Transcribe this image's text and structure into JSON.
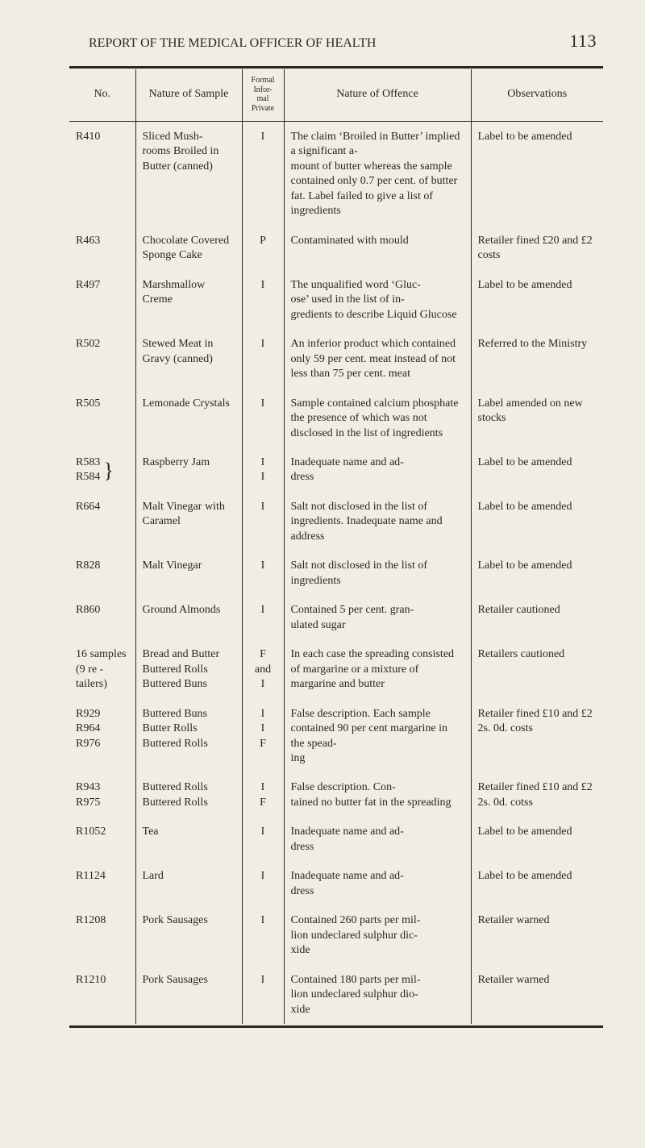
{
  "header": {
    "running_title": "REPORT OF THE MEDICAL OFFICER OF HEALTH",
    "page_number": "113"
  },
  "columns": {
    "no": "No.",
    "sample": "Nature of Sample",
    "fip_formal": "Formal",
    "fip_informal": "Infor-\nmal",
    "fip_private": "Private",
    "offence": "Nature of Offence",
    "obs": "Observations"
  },
  "rows": [
    {
      "no": "R410",
      "sample": "Sliced Mush-\nrooms Broiled in Butter (canned)",
      "fip": "I",
      "offence": "The claim ‘Broiled in Butter’ implied a significant a-\nmount of butter whereas the sample contained only 0.7 per cent. of butter fat. Label failed to give a list of ingredients",
      "obs": "Label to be amended"
    },
    {
      "no": "R463",
      "sample": "Chocolate Covered Sponge Cake",
      "fip": "P",
      "offence": "Contaminated with mould",
      "obs": "Retailer fined £20 and £2 costs"
    },
    {
      "no": "R497",
      "sample": "Marshmallow Creme",
      "fip": "I",
      "offence": "The unqualified word ‘Gluc-\nose’ used in the list of in-\ngredients to describe Liquid Glucose",
      "obs": "Label to be amended"
    },
    {
      "no": "R502",
      "sample": "Stewed Meat in Gravy (canned)",
      "fip": "I",
      "offence": "An inferior product which contained only 59 per cent. meat instead of not less than 75 per cent. meat",
      "obs": "Referred to the Ministry"
    },
    {
      "no": "R505",
      "sample": "Lemonade Crystals",
      "fip": "I",
      "offence": "Sample contained calcium phosphate the presence of which was not disclosed in the list of ingredients",
      "obs": "Label amended on new stocks"
    },
    {
      "no": "R583\nR584",
      "brace": true,
      "sample": "Raspberry Jam",
      "fip": "I\nI",
      "offence": "Inadequate name and ad-\ndress",
      "obs": "Label to be amended"
    },
    {
      "no": "R664",
      "sample": "Malt Vinegar with Caramel",
      "fip": "I",
      "offence": "Salt not disclosed in the list of ingredients. Inadequate name and address",
      "obs": "Label to be amended"
    },
    {
      "no": "R828",
      "sample": "Malt Vinegar",
      "fip": "I",
      "offence": "Salt not disclosed in the list of ingredients",
      "obs": "Label to be amended"
    },
    {
      "no": "R860",
      "sample": "Ground Almonds",
      "fip": "I",
      "offence": "Contained 5 per cent. gran-\nulated sugar",
      "obs": "Retailer cautioned"
    },
    {
      "no": "16 samples (9 re - tailers)",
      "sample": "Bread and Butter Buttered Rolls Buttered Buns",
      "fip": "F\nand\nI",
      "offence": "In each case the spreading consisted of margarine or a mixture of margarine and butter",
      "obs": "Retailers cautioned"
    },
    {
      "no": "R929\nR964\nR976",
      "sample": "Buttered Buns Butter Rolls Buttered Rolls",
      "fip": "I\nI\nF",
      "offence": "False description. Each sample contained 90 per cent margarine in the spead-\ning",
      "obs": "Retailer fined £10 and £2 2s. 0d. costs"
    },
    {
      "no": "R943\nR975",
      "sample": "Buttered Rolls Buttered Rolls",
      "fip": "I\nF",
      "offence": "False description. Con-\ntained no butter fat in the spreading",
      "obs": "Retailer fined £10 and £2 2s. 0d. cotss"
    },
    {
      "no": "R1052",
      "sample": "Tea",
      "fip": "I",
      "offence": "Inadequate name and ad-\ndress",
      "obs": "Label to be amended"
    },
    {
      "no": "R1124",
      "sample": "Lard",
      "fip": "I",
      "offence": "Inadequate name and ad-\ndress",
      "obs": "Label to be amended"
    },
    {
      "no": "R1208",
      "sample": "Pork Sausages",
      "fip": "I",
      "offence": "Contained 260 parts per mil-\nlion undeclared sulphur dic-\nxide",
      "obs": "Retailer warned"
    },
    {
      "no": "R1210",
      "sample": "Pork Sausages",
      "fip": "I",
      "offence": "Contained 180 parts per mil-\nlion undeclared sulphur dio-\nxide",
      "obs": "Retailer warned"
    }
  ]
}
